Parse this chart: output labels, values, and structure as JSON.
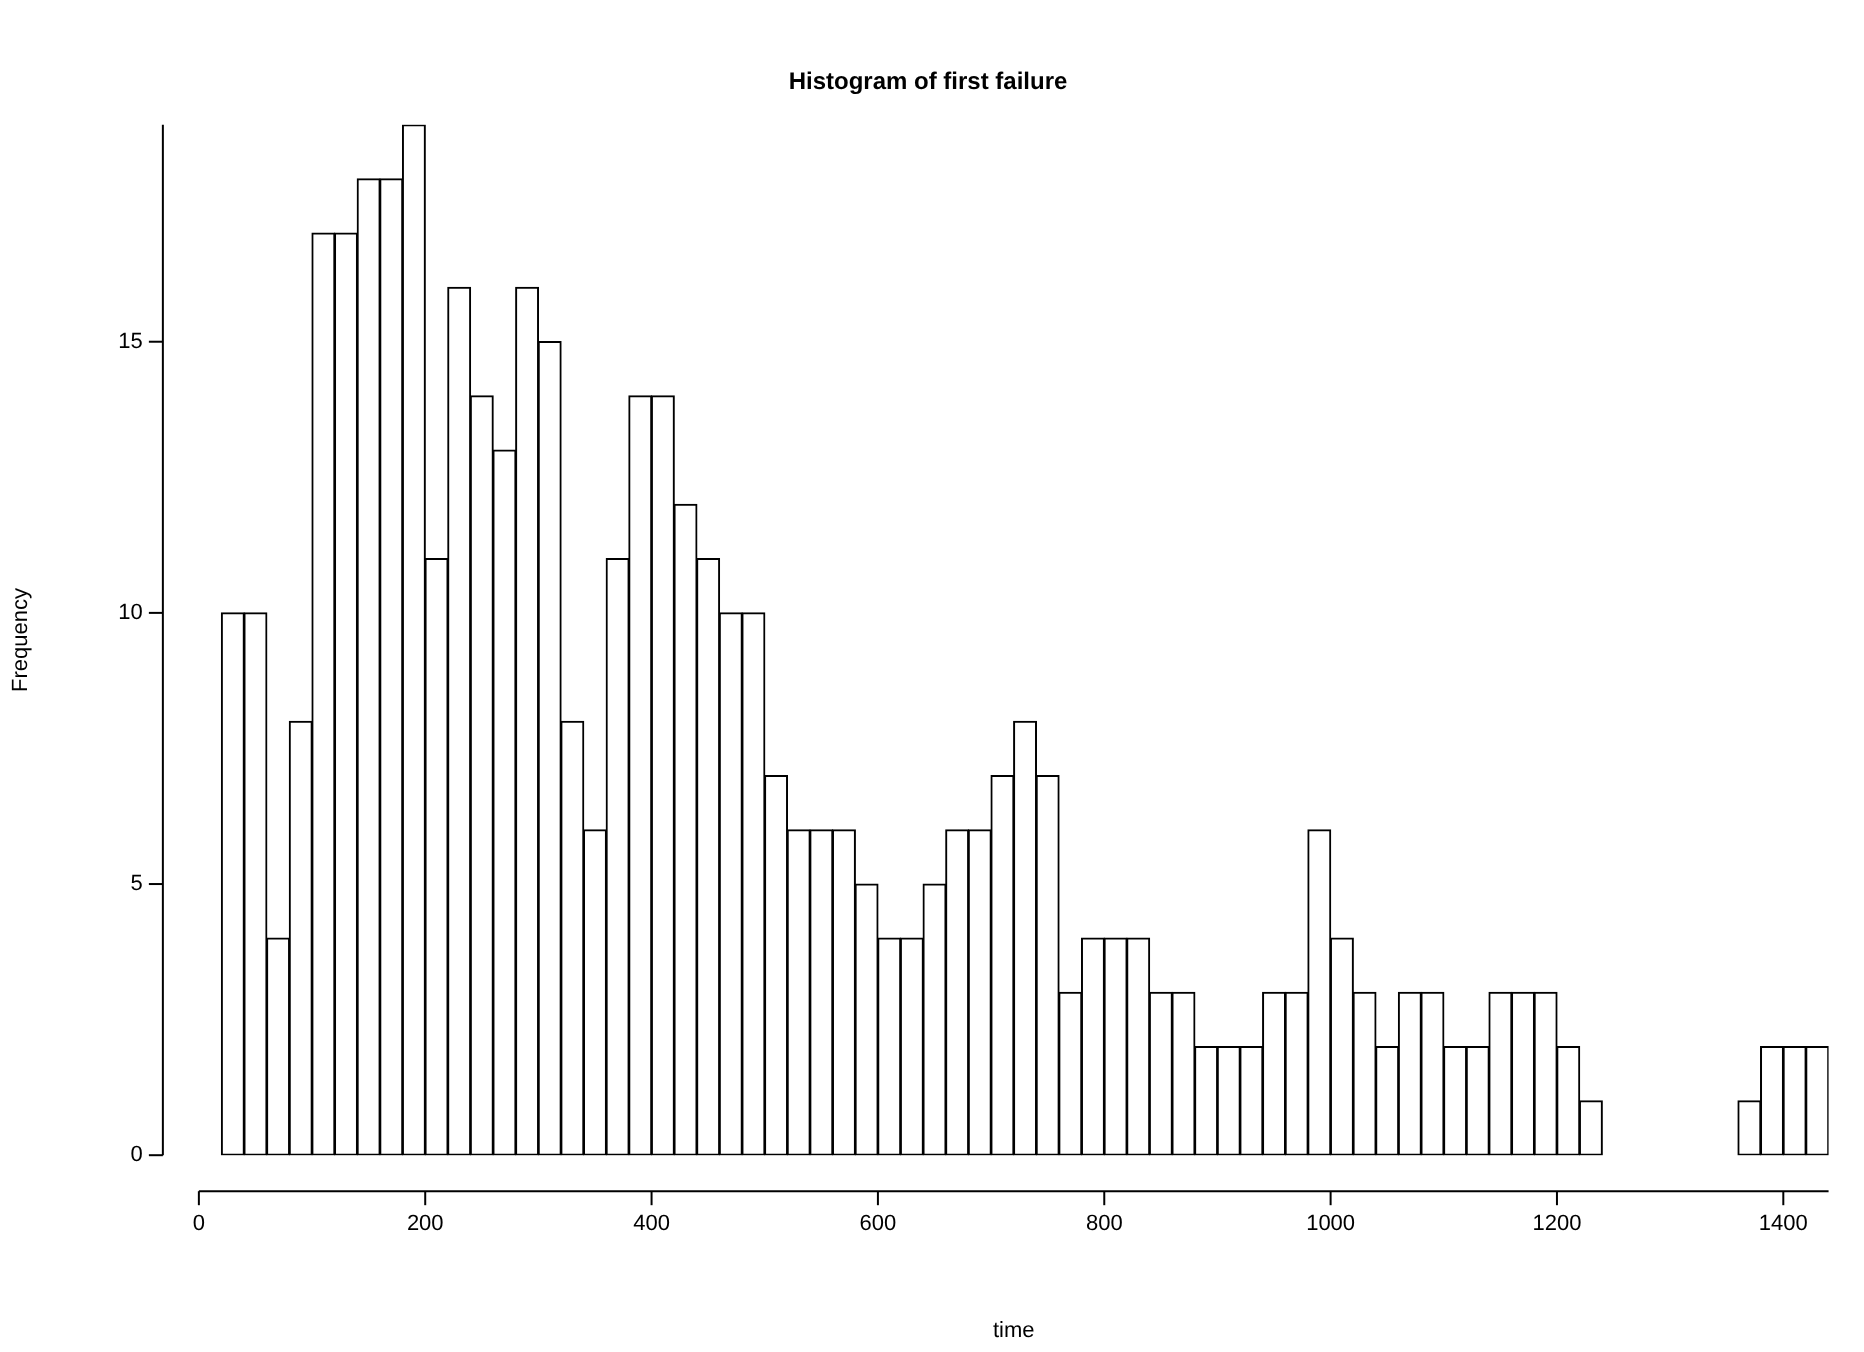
{
  "chart_data": {
    "type": "histogram",
    "title": "Histogram of first failure",
    "xlabel": "time",
    "ylabel": "Frequency",
    "bins": [
      20,
      40,
      60,
      80,
      100,
      120,
      140,
      160,
      180,
      200,
      220,
      240,
      260,
      280,
      300,
      320,
      340,
      360,
      380,
      400,
      420,
      440,
      460,
      480,
      500,
      520,
      540,
      560,
      580,
      600,
      620,
      640,
      660,
      680,
      700,
      720,
      740,
      760,
      780,
      800,
      820,
      840,
      860,
      880,
      900,
      920,
      940,
      960,
      980,
      1000,
      1020,
      1040,
      1060,
      1080,
      1100,
      1120,
      1140,
      1160,
      1180,
      1200,
      1220,
      1240,
      1260,
      1280,
      1300,
      1320,
      1340,
      1360,
      1380,
      1400,
      1420,
      1440
    ],
    "values": [
      10,
      10,
      4,
      8,
      17,
      17,
      18,
      18,
      19,
      11,
      16,
      14,
      13,
      16,
      15,
      8,
      6,
      11,
      14,
      14,
      12,
      11,
      10,
      10,
      7,
      6,
      6,
      6,
      5,
      4,
      4,
      5,
      6,
      6,
      7,
      8,
      7,
      3,
      4,
      4,
      4,
      3,
      3,
      2,
      2,
      2,
      3,
      3,
      6,
      4,
      3,
      2,
      3,
      3,
      2,
      2,
      3,
      3,
      3,
      2,
      1,
      0,
      0,
      0,
      0,
      0,
      0,
      1,
      2,
      2,
      2
    ],
    "color": "#ffffff",
    "xlim": [
      0,
      1440
    ],
    "xticks": [
      0,
      200,
      400,
      600,
      800,
      1000,
      1200,
      1400
    ],
    "ylim": [
      0,
      19
    ],
    "yticks": [
      0,
      5,
      10,
      15
    ],
    "grid": false,
    "legend": false
  }
}
